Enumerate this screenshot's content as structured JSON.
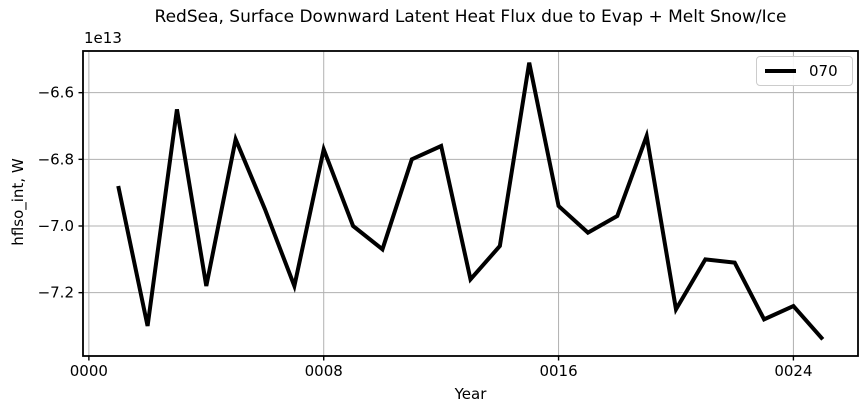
{
  "colors": {
    "background": "#ffffff",
    "text": "#000000",
    "series_line": "#000000",
    "grid": "#b0b0b0",
    "spine": "#000000",
    "tick": "#000000",
    "legend_border": "#cccccc",
    "legend_background": "#ffffff"
  },
  "chart_data": {
    "type": "line",
    "title": "RedSea, Surface Downward Latent Heat Flux due to Evap + Melt Snow/Ice",
    "xlabel": "Year",
    "ylabel": "hflso_int, W",
    "offset_text": "1e13",
    "value_scale": "1e13",
    "unit": "W",
    "grid": true,
    "legend_position": "upper right",
    "xlim": [
      -0.2,
      26.2
    ],
    "ylim": [
      -7.39,
      -6.475
    ],
    "xticks": {
      "values": [
        0,
        8,
        16,
        24
      ],
      "labels": [
        "0000",
        "0008",
        "0016",
        "0024"
      ]
    },
    "yticks": {
      "values": [
        -6.6,
        -6.8,
        -7.0,
        -7.2
      ],
      "labels": [
        "−6.6",
        "−6.8",
        "−7.0",
        "−7.2"
      ]
    },
    "x": [
      1,
      2,
      3,
      4,
      5,
      6,
      7,
      8,
      9,
      10,
      11,
      12,
      13,
      14,
      15,
      16,
      17,
      18,
      19,
      20,
      21,
      22,
      23,
      24,
      25
    ],
    "series": [
      {
        "name": "070",
        "color": "#000000",
        "linewidth": 4,
        "values": [
          -6.88,
          -7.3,
          -6.65,
          -7.18,
          -6.74,
          -6.95,
          -7.18,
          -6.77,
          -7.0,
          -7.07,
          -6.8,
          -6.76,
          -7.16,
          -7.06,
          -6.51,
          -6.94,
          -7.02,
          -6.97,
          -6.73,
          -7.25,
          -7.1,
          -7.11,
          -7.28,
          -7.24,
          -7.34
        ]
      }
    ]
  },
  "legend": {
    "entries": [
      {
        "label": "070"
      }
    ]
  }
}
